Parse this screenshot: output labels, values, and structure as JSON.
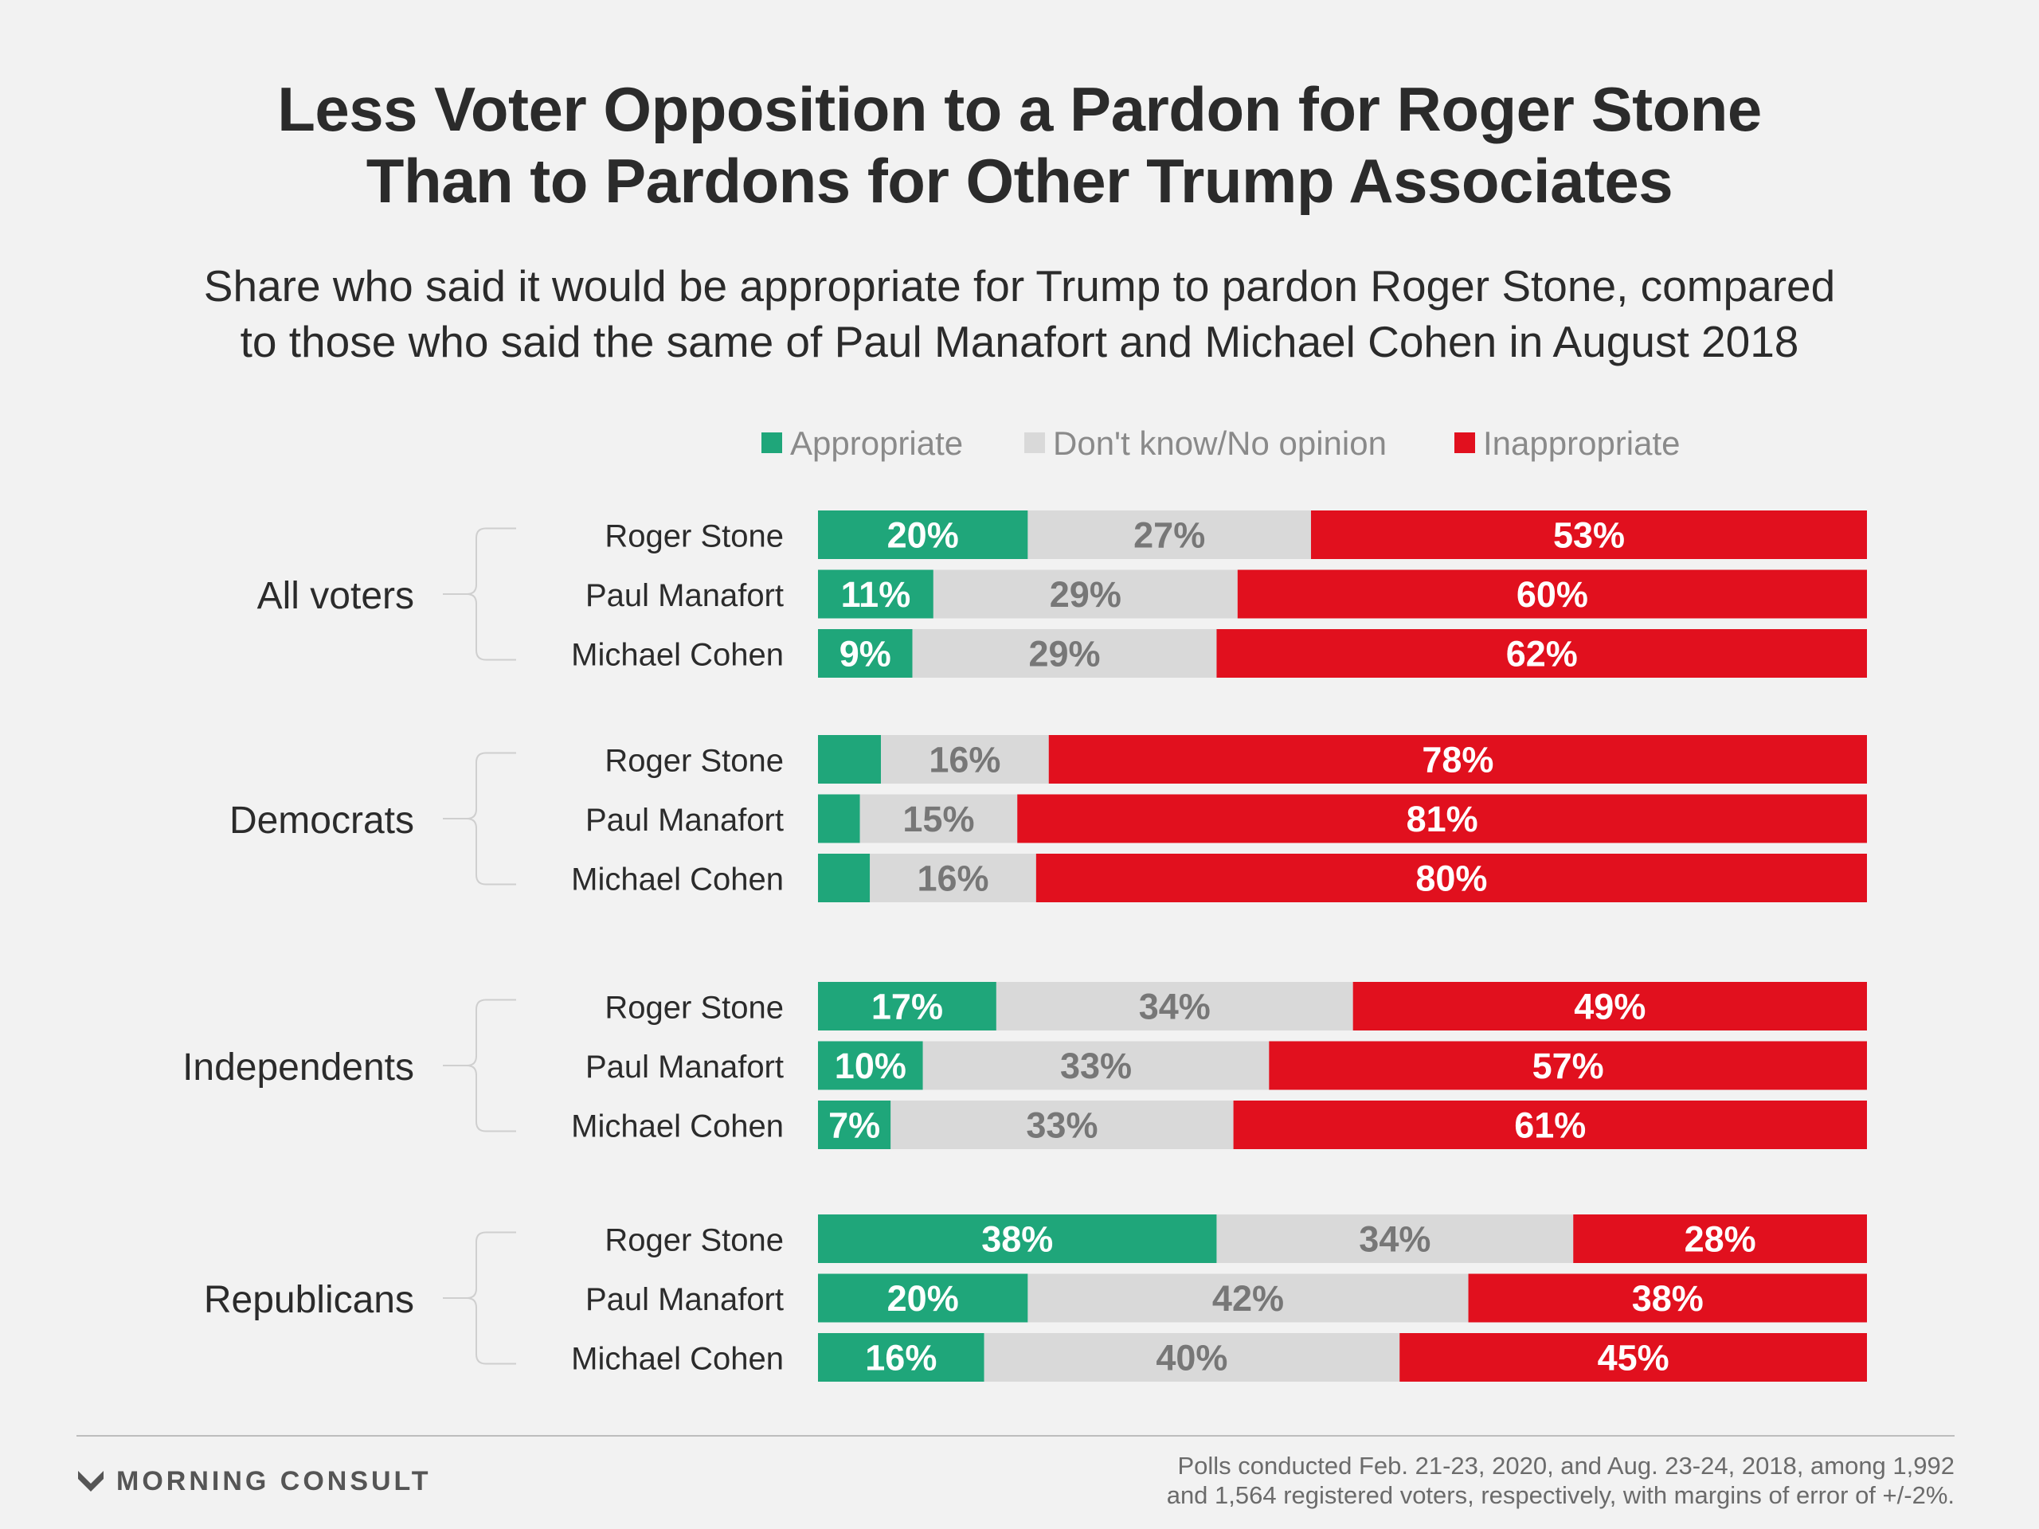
{
  "title": {
    "line1": "Less Voter Opposition to a Pardon for Roger Stone",
    "line2": "Than to Pardons for Other Trump Associates"
  },
  "subtitle": {
    "line1": "Share who said it would be appropriate for Trump to pardon Roger Stone, compared",
    "line2": "to those who said the same of Paul Manafort and Michael Cohen in August 2018"
  },
  "colors": {
    "appropriate": "#1fa67a",
    "dont_know": "#d9d9d9",
    "inappropriate": "#e1101e",
    "background": "#f2f2f2"
  },
  "chart_data": {
    "type": "bar",
    "orientation": "horizontal",
    "stacked": true,
    "legend_position": "top",
    "series": [
      {
        "name": "Appropriate",
        "color": "#1fa67a"
      },
      {
        "name": "Don't know/No opinion",
        "color": "#d9d9d9"
      },
      {
        "name": "Inappropriate",
        "color": "#e1101e"
      }
    ],
    "groups": [
      {
        "name": "All voters",
        "rows": [
          {
            "label": "Roger Stone",
            "values": [
              20,
              27,
              53
            ],
            "labels": [
              "20%",
              "27%",
              "53%"
            ]
          },
          {
            "label": "Paul Manafort",
            "values": [
              11,
              29,
              60
            ],
            "labels": [
              "11%",
              "29%",
              "60%"
            ]
          },
          {
            "label": "Michael Cohen",
            "values": [
              9,
              29,
              62
            ],
            "labels": [
              "9%",
              "29%",
              "62%"
            ]
          }
        ]
      },
      {
        "name": "Democrats",
        "rows": [
          {
            "label": "Roger Stone",
            "values": [
              6,
              16,
              78
            ],
            "labels": [
              "",
              "16%",
              "78%"
            ]
          },
          {
            "label": "Paul Manafort",
            "values": [
              4,
              15,
              81
            ],
            "labels": [
              "",
              "15%",
              "81%"
            ]
          },
          {
            "label": "Michael Cohen",
            "values": [
              5,
              16,
              80
            ],
            "labels": [
              "",
              "16%",
              "80%"
            ]
          }
        ]
      },
      {
        "name": "Independents",
        "rows": [
          {
            "label": "Roger Stone",
            "values": [
              17,
              34,
              49
            ],
            "labels": [
              "17%",
              "34%",
              "49%"
            ]
          },
          {
            "label": "Paul Manafort",
            "values": [
              10,
              33,
              57
            ],
            "labels": [
              "10%",
              "33%",
              "57%"
            ]
          },
          {
            "label": "Michael Cohen",
            "values": [
              7,
              33,
              61
            ],
            "labels": [
              "7%",
              "33%",
              "61%"
            ]
          }
        ]
      },
      {
        "name": "Republicans",
        "rows": [
          {
            "label": "Roger Stone",
            "values": [
              38,
              34,
              28
            ],
            "labels": [
              "38%",
              "34%",
              "28%"
            ]
          },
          {
            "label": "Paul Manafort",
            "values": [
              20,
              42,
              38
            ],
            "labels": [
              "20%",
              "42%",
              "38%"
            ]
          },
          {
            "label": "Michael Cohen",
            "values": [
              16,
              40,
              45
            ],
            "labels": [
              "16%",
              "40%",
              "45%"
            ]
          }
        ]
      }
    ]
  },
  "footer": {
    "brand": "MORNING CONSULT",
    "brand_icon": "morning-consult-logo-icon",
    "note_line1": "Polls conducted Feb. 21-23, 2020, and Aug. 23-24, 2018, among 1,992",
    "note_line2": "and 1,564 registered voters, respectively, with margins of error of +/-2%."
  }
}
